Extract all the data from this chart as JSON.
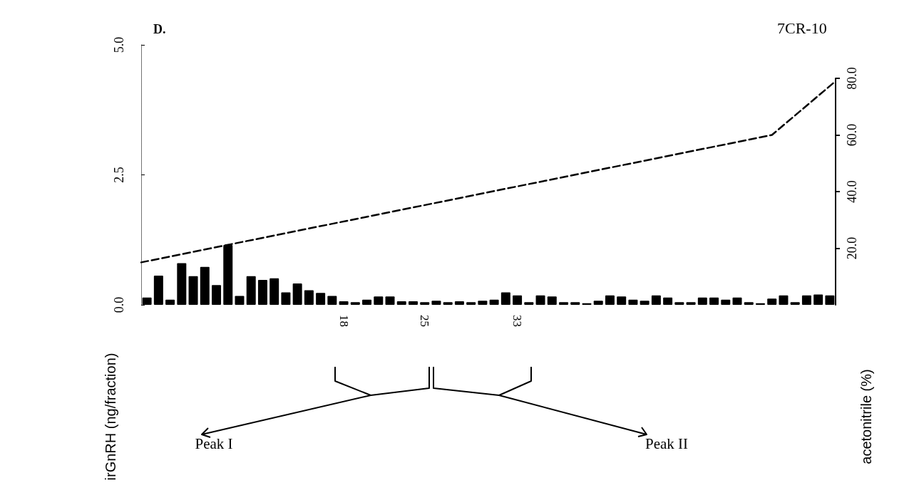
{
  "chart_data": {
    "type": "bar",
    "title": "D.",
    "subtitle": "7CR-10",
    "ylabel": "irGnRH (ng/fraction)",
    "y2label": "acetonitrile (%)",
    "annotations": [
      "Peak I",
      "Peak II"
    ],
    "xlim": [
      0.5,
      60.5
    ],
    "xticks": [
      18,
      25,
      33
    ],
    "ylim": [
      0,
      5
    ],
    "yticks": [
      {
        "value": 0,
        "label": "0.0"
      },
      2.5,
      {
        "value": 5,
        "label": "5.0"
      }
    ],
    "y2lim": [
      0,
      80
    ],
    "y2ticks": [
      {
        "value": 20,
        "label": "20.0"
      },
      {
        "value": 40,
        "label": "40.0"
      },
      {
        "value": 60,
        "label": "60.0"
      },
      {
        "value": 80,
        "label": "80.0"
      }
    ],
    "series": [
      {
        "color": "#000000",
        "x": [
          1,
          2,
          3,
          4,
          5,
          6,
          7,
          8,
          9,
          10,
          11,
          12,
          13,
          14,
          15,
          16,
          17,
          18,
          19,
          20,
          21,
          22,
          23,
          24,
          25,
          26,
          27,
          28,
          29,
          30,
          31,
          32,
          33,
          34,
          35,
          36,
          37,
          38,
          39,
          40,
          41,
          42,
          43,
          44,
          45,
          46,
          47,
          48,
          49,
          50,
          51,
          52,
          53,
          54,
          55,
          56,
          57,
          58,
          59,
          60
        ],
        "values": [
          0.14,
          0.56,
          0.1,
          0.8,
          0.55,
          0.73,
          0.38,
          1.15,
          0.17,
          0.55,
          0.48,
          0.51,
          0.24,
          0.41,
          0.28,
          0.23,
          0.17,
          0.07,
          0.05,
          0.1,
          0.16,
          0.16,
          0.07,
          0.07,
          0.05,
          0.08,
          0.05,
          0.07,
          0.05,
          0.08,
          0.1,
          0.24,
          0.18,
          0.05,
          0.18,
          0.16,
          0.05,
          0.05,
          0.03,
          0.08,
          0.18,
          0.16,
          0.1,
          0.08,
          0.18,
          0.14,
          0.05,
          0.05,
          0.14,
          0.14,
          0.1,
          0.14,
          0.05,
          0.03,
          0.12,
          0.18,
          0.05,
          0.18,
          0.2,
          0.18
        ]
      },
      {
        "type": "line",
        "axis": "y2",
        "color": "#000000",
        "line_style": "dashed",
        "marker": "none",
        "x": [
          0.5,
          55,
          60.5
        ],
        "values": [
          15,
          60,
          79
        ]
      }
    ],
    "grid": false
  }
}
